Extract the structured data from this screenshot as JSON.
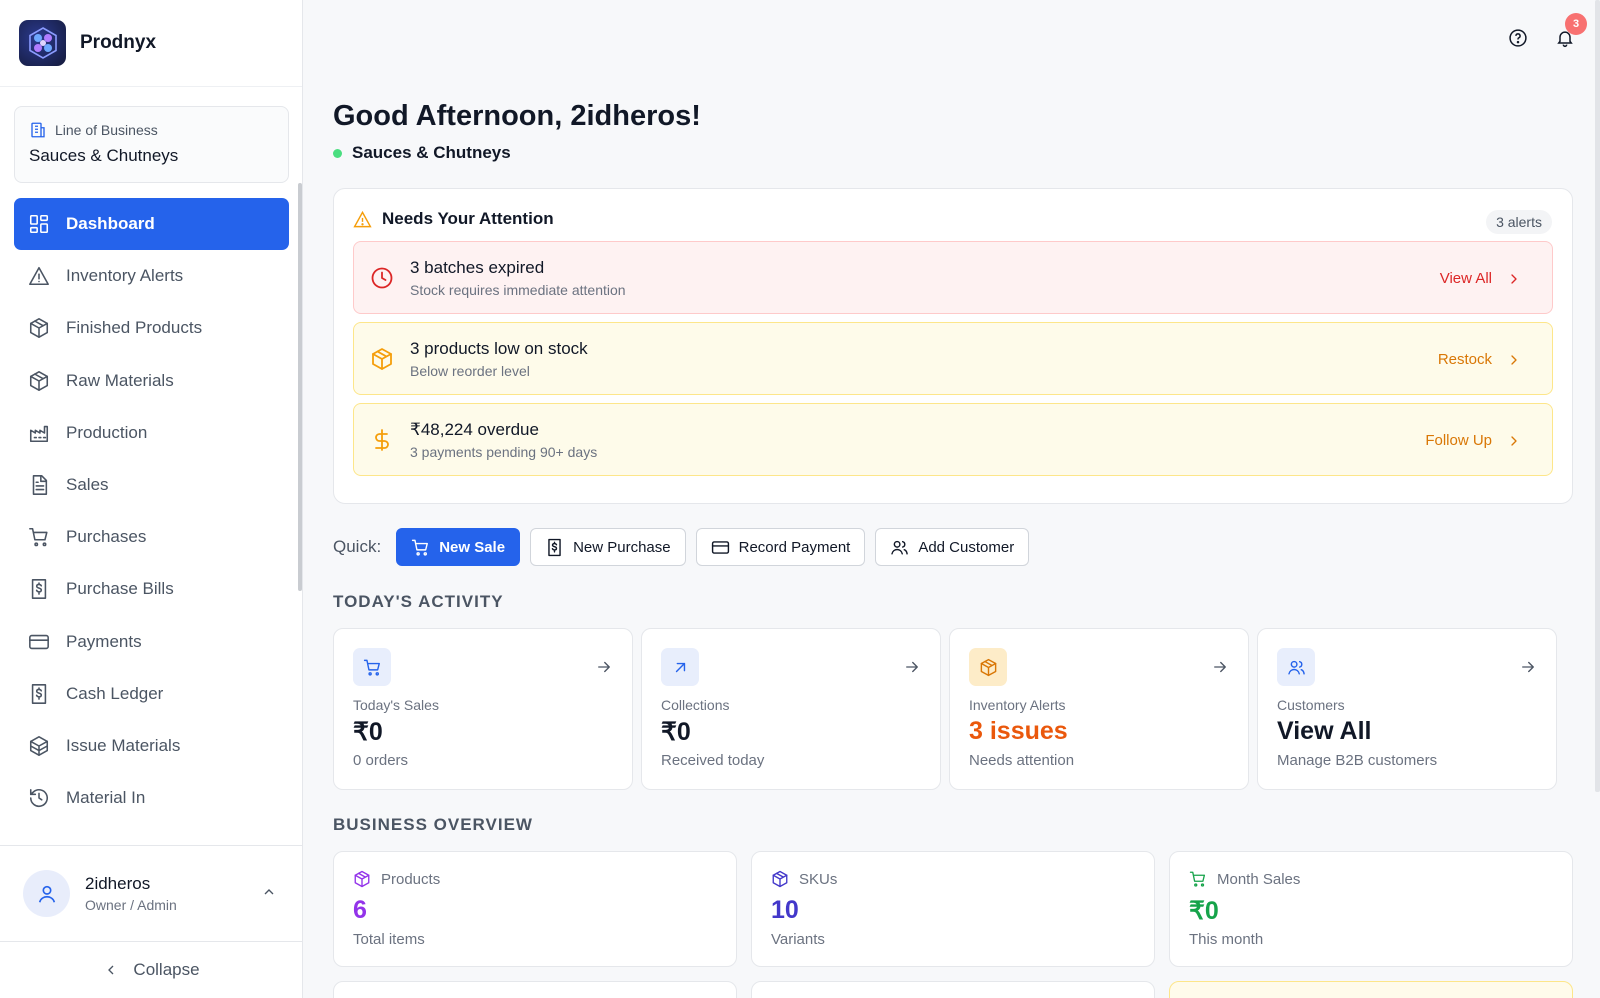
{
  "brand": {
    "name": "Prodnyx"
  },
  "line_of_business": {
    "label": "Line of Business",
    "value": "Sauces & Chutneys"
  },
  "nav": [
    {
      "label": "Dashboard",
      "icon": "dashboard-icon",
      "active": true
    },
    {
      "label": "Inventory Alerts",
      "icon": "warning-icon"
    },
    {
      "label": "Finished Products",
      "icon": "box-icon"
    },
    {
      "label": "Raw Materials",
      "icon": "box-icon"
    },
    {
      "label": "Production",
      "icon": "factory-icon"
    },
    {
      "label": "Sales",
      "icon": "document-icon"
    },
    {
      "label": "Purchases",
      "icon": "cart-icon"
    },
    {
      "label": "Purchase Bills",
      "icon": "bill-icon"
    },
    {
      "label": "Payments",
      "icon": "card-icon"
    },
    {
      "label": "Cash Ledger",
      "icon": "bill-icon"
    },
    {
      "label": "Issue Materials",
      "icon": "boxes-icon"
    },
    {
      "label": "Material In",
      "icon": "history-icon"
    }
  ],
  "user": {
    "name": "2idheros",
    "role": "Owner / Admin"
  },
  "collapse_label": "Collapse",
  "notifications": {
    "count": "3"
  },
  "greeting": "Good Afternoon, 2idheros!",
  "active_business": "Sauces & Chutneys",
  "attention": {
    "title": "Needs Your Attention",
    "count_label": "3 alerts",
    "alerts": [
      {
        "title": "3 batches expired",
        "subtitle": "Stock requires immediate attention",
        "action": "View All",
        "tone": "red",
        "icon": "clock-icon"
      },
      {
        "title": "3 products low on stock",
        "subtitle": "Below reorder level",
        "action": "Restock",
        "tone": "yellow",
        "icon": "package-icon"
      },
      {
        "title": "₹48,224 overdue",
        "subtitle": "3 payments pending 90+ days",
        "action": "Follow Up",
        "tone": "yellow",
        "icon": "dollar-icon"
      }
    ]
  },
  "quick": {
    "label": "Quick:",
    "actions": [
      {
        "label": "New Sale",
        "icon": "cart-icon",
        "primary": true
      },
      {
        "label": "New Purchase",
        "icon": "bill-icon"
      },
      {
        "label": "Record Payment",
        "icon": "card-icon"
      },
      {
        "label": "Add Customer",
        "icon": "users-icon"
      }
    ]
  },
  "todays_activity": {
    "title": "TODAY'S ACTIVITY",
    "cards": [
      {
        "label": "Today's Sales",
        "value": "₹0",
        "sub": "0 orders",
        "icon": "cart-icon",
        "color": "#111827"
      },
      {
        "label": "Collections",
        "value": "₹0",
        "sub": "Received today",
        "icon": "arrow-up-right-icon",
        "color": "#111827"
      },
      {
        "label": "Inventory Alerts",
        "value": "3 issues",
        "sub": "Needs attention",
        "icon": "package-icon",
        "color": "#ea580c"
      },
      {
        "label": "Customers",
        "value": "View All",
        "sub": "Manage B2B customers",
        "icon": "users-icon",
        "color": "#111827"
      }
    ]
  },
  "business_overview": {
    "title": "BUSINESS OVERVIEW",
    "cards": [
      {
        "label": "Products",
        "value": "6",
        "sub": "Total items",
        "icon": "box-icon",
        "color": "#9333ea"
      },
      {
        "label": "SKUs",
        "value": "10",
        "sub": "Variants",
        "icon": "box-icon",
        "color": "#4338ca"
      },
      {
        "label": "Month Sales",
        "value": "₹0",
        "sub": "This month",
        "icon": "cart-icon",
        "color": "#16a34a"
      }
    ]
  }
}
